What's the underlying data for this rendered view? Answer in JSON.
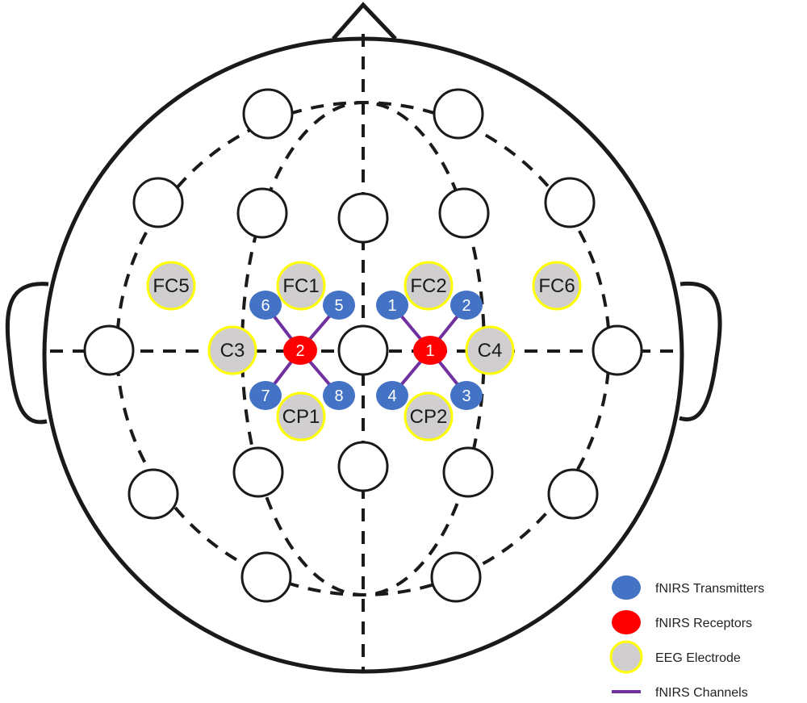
{
  "colors": {
    "transmitter": "#4472C4",
    "receptor": "#FF0000",
    "eeg_fill": "#D0CECE",
    "eeg_stroke": "#FFFF00",
    "channel": "#7030A0",
    "outline": "#1a1a1a"
  },
  "eeg_electrodes": [
    {
      "label": "FC5"
    },
    {
      "label": "FC1"
    },
    {
      "label": "FC2"
    },
    {
      "label": "FC6"
    },
    {
      "label": "C3"
    },
    {
      "label": "C4"
    },
    {
      "label": "CP1"
    },
    {
      "label": "CP2"
    }
  ],
  "transmitters": [
    {
      "label": "6"
    },
    {
      "label": "5"
    },
    {
      "label": "7"
    },
    {
      "label": "8"
    },
    {
      "label": "1"
    },
    {
      "label": "2"
    },
    {
      "label": "4"
    },
    {
      "label": "3"
    }
  ],
  "receptors": [
    {
      "label": "2"
    },
    {
      "label": "1"
    }
  ],
  "legend": {
    "transmitters": "fNIRS Transmitters",
    "receptors": "fNIRS Receptors",
    "eeg": "EEG Electrode",
    "channels": "fNIRS Channels"
  }
}
